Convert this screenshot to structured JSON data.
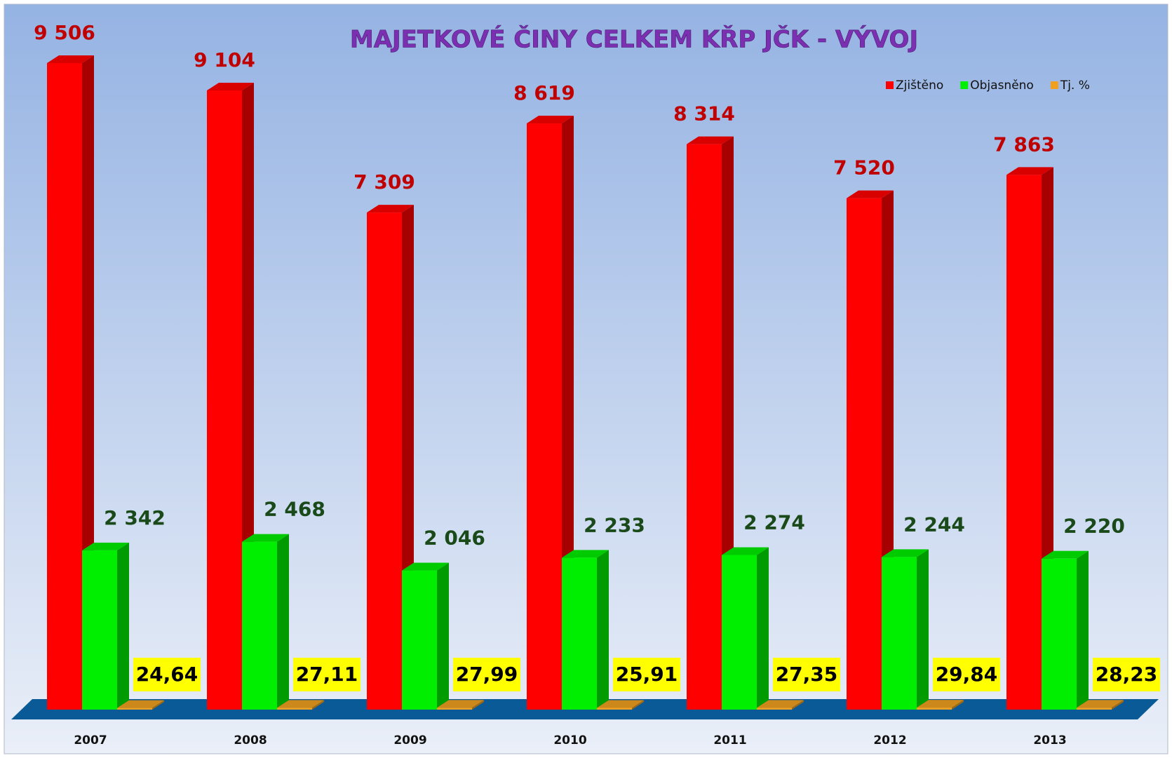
{
  "chart_data": {
    "type": "bar3d",
    "title": "MAJETKOVÉ ČINY CELKEM KŘP JČK - VÝVOJ",
    "categories": [
      "2007",
      "2008",
      "2009",
      "2010",
      "2011",
      "2012",
      "2013"
    ],
    "series": [
      {
        "name": "Zjištěno",
        "color": "#ff0000",
        "values": [
          9506,
          9104,
          7309,
          8619,
          8314,
          7520,
          7863
        ],
        "value_labels": [
          "9 506",
          "9 104",
          "7 309",
          "8 619",
          "8 314",
          "7 520",
          "7 863"
        ]
      },
      {
        "name": "Objasněno",
        "color": "#00ee00",
        "values": [
          2342,
          2468,
          2046,
          2233,
          2274,
          2244,
          2220
        ],
        "value_labels": [
          "2 342",
          "2 468",
          "2 046",
          "2 233",
          "2 274",
          "2 244",
          "2 220"
        ]
      },
      {
        "name": "Tj. %",
        "color": "#f0a020",
        "values": [
          24.64,
          27.11,
          27.99,
          25.91,
          27.35,
          29.84,
          28.23
        ],
        "value_labels": [
          "24,64",
          "27,11",
          "27,99",
          "25,91",
          "27,35",
          "29,84",
          "28,23"
        ]
      }
    ],
    "legend": "top-right"
  }
}
